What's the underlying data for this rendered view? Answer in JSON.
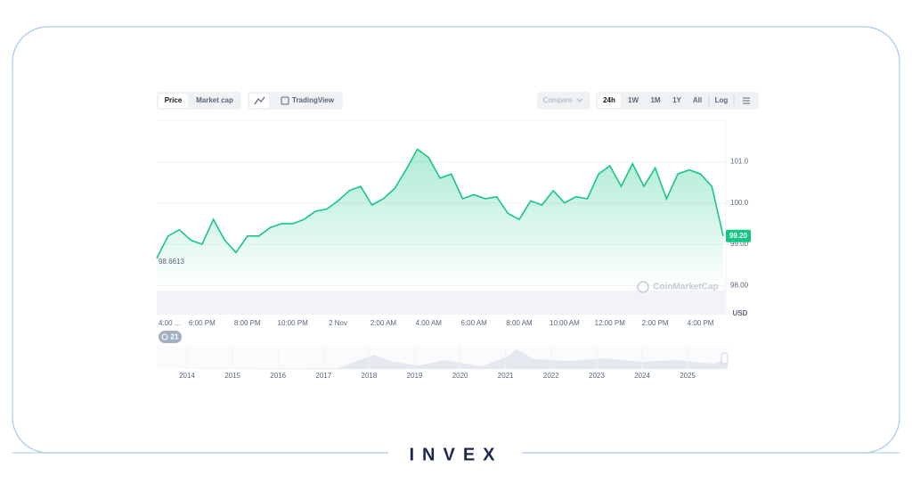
{
  "toolbar": {
    "price": "Price",
    "market_cap": "Market cap",
    "tradingview": "TradingView",
    "compare": "Compare",
    "ranges": [
      "24h",
      "1W",
      "1M",
      "1Y",
      "All"
    ],
    "log": "Log"
  },
  "chart_data": {
    "type": "line",
    "categories": [
      "4:00 ...",
      null,
      null,
      null,
      "6:00 PM",
      null,
      null,
      null,
      "8:00 PM",
      null,
      null,
      null,
      "10:00 PM",
      null,
      null,
      null,
      "2 Nov",
      null,
      null,
      null,
      "2:00 AM",
      null,
      null,
      null,
      "4:00 AM",
      null,
      null,
      null,
      "6:00 AM",
      null,
      null,
      null,
      "8:00 AM",
      null,
      null,
      null,
      "10:00 AM",
      null,
      null,
      null,
      "12:00 PM",
      null,
      null,
      null,
      "2:00 PM",
      null,
      null,
      null,
      "4:00 PM",
      null,
      null
    ],
    "values": [
      98.6613,
      99.2,
      99.35,
      99.1,
      99.0,
      99.6,
      99.1,
      98.8,
      99.2,
      99.2,
      99.4,
      99.5,
      99.5,
      99.6,
      99.8,
      99.85,
      100.05,
      100.3,
      100.4,
      99.95,
      100.1,
      100.35,
      100.8,
      101.3,
      101.1,
      100.6,
      100.7,
      100.1,
      100.2,
      100.1,
      100.15,
      99.75,
      99.6,
      100.05,
      99.95,
      100.3,
      100.0,
      100.15,
      100.1,
      100.7,
      100.9,
      100.4,
      100.95,
      100.4,
      100.85,
      100.1,
      100.7,
      100.8,
      100.7,
      100.4,
      99.2
    ],
    "value_labels": [
      "98.6613",
      null,
      null,
      null,
      null,
      null,
      null,
      null,
      null,
      null,
      null,
      null,
      null,
      null,
      null,
      null,
      null,
      null,
      null,
      null,
      null,
      null,
      null,
      null,
      null,
      null,
      null,
      null,
      null,
      null,
      null,
      null,
      null,
      null,
      null,
      null,
      null,
      null,
      null,
      null,
      null,
      null,
      null,
      null,
      null,
      null,
      null,
      null,
      null,
      null,
      "99.20"
    ],
    "color": "#16c784",
    "ylim": [
      97.9,
      102.0
    ],
    "yticks": [
      {
        "value": 98,
        "label": "98.00"
      },
      {
        "value": 99,
        "label": "99.00"
      },
      {
        "value": 100,
        "label": "100.0"
      },
      {
        "value": 101,
        "label": "101.0"
      }
    ],
    "y_unit": "USD",
    "grid": true
  },
  "watermark": "CoinMarketCap",
  "history_badge": "21",
  "navigator": {
    "years": [
      "2014",
      "2015",
      "2016",
      "2017",
      "2018",
      "2019",
      "2020",
      "2021",
      "2022",
      "2023",
      "2024",
      "2025"
    ]
  },
  "brand": "INVEX"
}
